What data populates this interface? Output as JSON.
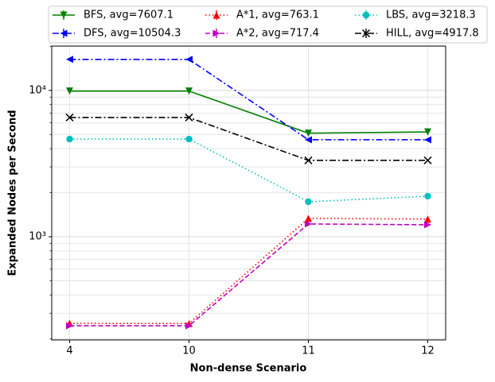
{
  "chart_data": {
    "type": "line",
    "xlabel": "Non-dense Scenario",
    "ylabel": "Expanded Nodes per Second",
    "categories": [
      "4",
      "10",
      "11",
      "12"
    ],
    "yscale": "log",
    "ylim": [
      197,
      20100
    ],
    "yticks": [
      {
        "value": 1000,
        "label": "10³"
      },
      {
        "value": 10000,
        "label": "10⁴"
      }
    ],
    "yminorticks": [
      200,
      300,
      400,
      500,
      600,
      700,
      800,
      900,
      2000,
      3000,
      4000,
      5000,
      6000,
      7000,
      8000,
      9000,
      20000
    ],
    "grid": true,
    "legend": "top",
    "series": [
      {
        "name": "BFS, avg=7607.1",
        "color": "#008000",
        "dash": "solid",
        "marker": "triangle-down",
        "values": [
          9900,
          9900,
          5100,
          5200
        ]
      },
      {
        "name": "DFS, avg=10504.3",
        "color": "#0000ff",
        "dash": "dashdot",
        "marker": "triangle-left",
        "values": [
          16300,
          16300,
          4600,
          4600
        ]
      },
      {
        "name": "A*1, avg=763.1",
        "color": "#ff0000",
        "dash": "dotted",
        "marker": "triangle-up",
        "values": [
          256,
          255,
          1334,
          1320
        ]
      },
      {
        "name": "A*2, avg=717.4",
        "color": "#bf00bf",
        "dash": "dashed",
        "marker": "triangle-right",
        "values": [
          246,
          246,
          1222,
          1207
        ]
      },
      {
        "name": "LBS, avg=3218.3",
        "color": "#00bfbf",
        "dash": "dotted",
        "marker": "circle",
        "values": [
          4650,
          4650,
          1734,
          1892
        ]
      },
      {
        "name": "HILL, avg=4917.8",
        "color": "#000000",
        "dash": "dashdot",
        "marker": "x",
        "values": [
          6530,
          6530,
          3325,
          3325
        ]
      }
    ]
  }
}
